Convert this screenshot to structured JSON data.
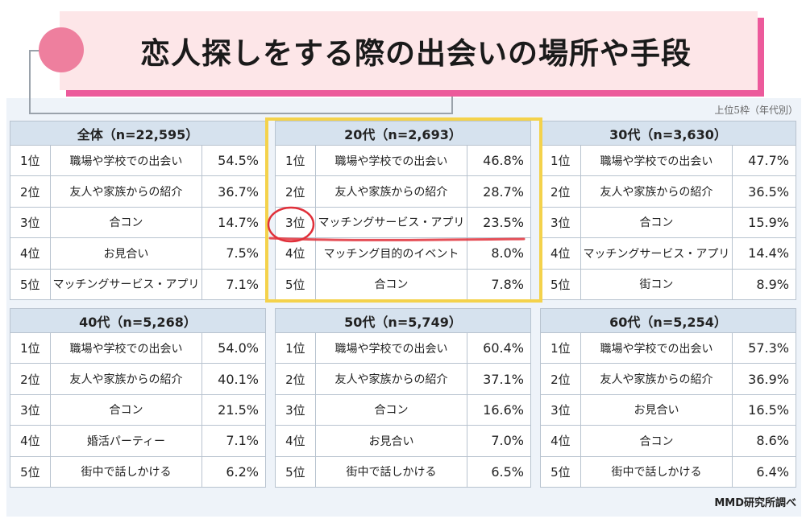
{
  "title": "恋人探しをする際の出会いの場所や手段",
  "note": "上位5枠（年代別）",
  "credit": "MMD研究所調べ",
  "colors": {
    "accent_pink": "#ec5a9b",
    "title_bg": "#fde6e8",
    "header_bg": "#d6e2ee",
    "highlight": "#f4d24b",
    "marker_red": "#e0303a"
  },
  "tables": [
    {
      "header": "全体（n=22,595）",
      "rows": [
        {
          "rank": "1位",
          "item": "職場や学校での出会い",
          "pct": "54.5%"
        },
        {
          "rank": "2位",
          "item": "友人や家族からの紹介",
          "pct": "36.7%"
        },
        {
          "rank": "3位",
          "item": "合コン",
          "pct": "14.7%"
        },
        {
          "rank": "4位",
          "item": "お見合い",
          "pct": "7.5%"
        },
        {
          "rank": "5位",
          "item": "マッチングサービス・アプリ",
          "pct": "7.1%"
        }
      ]
    },
    {
      "header": "20代（n=2,693）",
      "rows": [
        {
          "rank": "1位",
          "item": "職場や学校での出会い",
          "pct": "46.8%"
        },
        {
          "rank": "2位",
          "item": "友人や家族からの紹介",
          "pct": "28.7%"
        },
        {
          "rank": "3位",
          "item": "マッチングサービス・アプリ",
          "pct": "23.5%"
        },
        {
          "rank": "4位",
          "item": "マッチング目的のイベント",
          "pct": "8.0%"
        },
        {
          "rank": "5位",
          "item": "合コン",
          "pct": "7.8%"
        }
      ]
    },
    {
      "header": "30代（n=3,630）",
      "rows": [
        {
          "rank": "1位",
          "item": "職場や学校での出会い",
          "pct": "47.7%"
        },
        {
          "rank": "2位",
          "item": "友人や家族からの紹介",
          "pct": "36.5%"
        },
        {
          "rank": "3位",
          "item": "合コン",
          "pct": "15.9%"
        },
        {
          "rank": "4位",
          "item": "マッチングサービス・アプリ",
          "pct": "14.4%"
        },
        {
          "rank": "5位",
          "item": "街コン",
          "pct": "8.9%"
        }
      ]
    },
    {
      "header": "40代（n=5,268）",
      "rows": [
        {
          "rank": "1位",
          "item": "職場や学校での出会い",
          "pct": "54.0%"
        },
        {
          "rank": "2位",
          "item": "友人や家族からの紹介",
          "pct": "40.1%"
        },
        {
          "rank": "3位",
          "item": "合コン",
          "pct": "21.5%"
        },
        {
          "rank": "4位",
          "item": "婚活パーティー",
          "pct": "7.1%"
        },
        {
          "rank": "5位",
          "item": "街中で話しかける",
          "pct": "6.2%"
        }
      ]
    },
    {
      "header": "50代（n=5,749）",
      "rows": [
        {
          "rank": "1位",
          "item": "職場や学校での出会い",
          "pct": "60.4%"
        },
        {
          "rank": "2位",
          "item": "友人や家族からの紹介",
          "pct": "37.1%"
        },
        {
          "rank": "3位",
          "item": "合コン",
          "pct": "16.6%"
        },
        {
          "rank": "4位",
          "item": "お見合い",
          "pct": "7.0%"
        },
        {
          "rank": "5位",
          "item": "街中で話しかける",
          "pct": "6.5%"
        }
      ]
    },
    {
      "header": "60代（n=5,254）",
      "rows": [
        {
          "rank": "1位",
          "item": "職場や学校での出会い",
          "pct": "57.3%"
        },
        {
          "rank": "2位",
          "item": "友人や家族からの紹介",
          "pct": "36.9%"
        },
        {
          "rank": "3位",
          "item": "お見合い",
          "pct": "16.5%"
        },
        {
          "rank": "4位",
          "item": "合コン",
          "pct": "8.6%"
        },
        {
          "rank": "5位",
          "item": "街中で話しかける",
          "pct": "6.4%"
        }
      ]
    }
  ]
}
